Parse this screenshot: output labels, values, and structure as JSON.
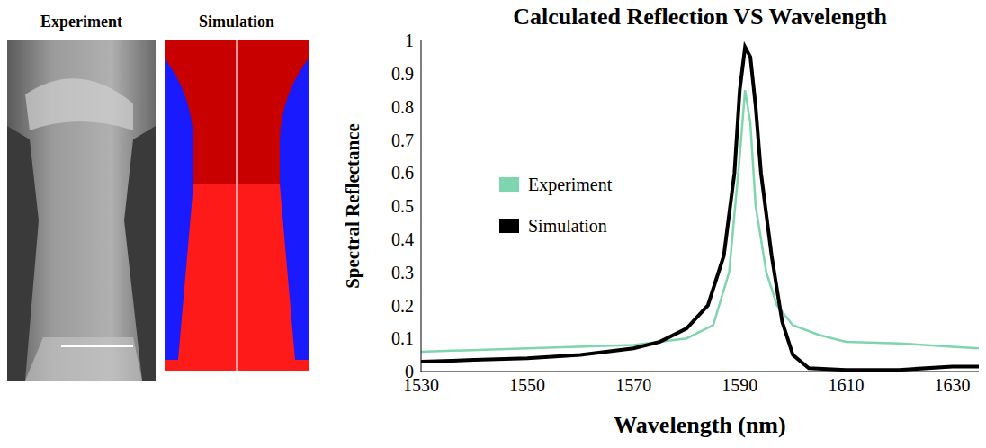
{
  "images": {
    "left_title": "Experiment",
    "right_title": "Simulation"
  },
  "chart_data": {
    "type": "line",
    "title": "Calculated Reflection VS Wavelength",
    "x_label": "Wavelength (nm)",
    "y_label": "Spectral Reflectance",
    "xlim": [
      1530,
      1635
    ],
    "xticks": [
      1530,
      1550,
      1570,
      1590,
      1610,
      1630
    ],
    "ylim": [
      0,
      1
    ],
    "yticks": [
      0,
      0.1,
      0.2,
      0.3,
      0.4,
      0.5,
      0.6,
      0.7,
      0.8,
      0.9,
      1
    ],
    "grid": false,
    "legend": "left",
    "series": [
      {
        "name": "Experiment",
        "color": "#7fd6ae",
        "x": [
          1530,
          1550,
          1570,
          1580,
          1585,
          1588,
          1590,
          1591,
          1592,
          1593,
          1595,
          1597,
          1600,
          1605,
          1610,
          1620,
          1630,
          1635
        ],
        "values": [
          0.06,
          0.07,
          0.08,
          0.1,
          0.14,
          0.3,
          0.65,
          0.85,
          0.75,
          0.5,
          0.3,
          0.2,
          0.14,
          0.11,
          0.09,
          0.085,
          0.075,
          0.07
        ]
      },
      {
        "name": "Simulation",
        "color": "#000000",
        "x": [
          1530,
          1540,
          1550,
          1560,
          1570,
          1575,
          1580,
          1584,
          1587,
          1589,
          1590,
          1591,
          1592,
          1593,
          1594,
          1596,
          1598,
          1600,
          1603,
          1610,
          1620,
          1630,
          1635
        ],
        "values": [
          0.03,
          0.035,
          0.04,
          0.05,
          0.07,
          0.09,
          0.13,
          0.2,
          0.35,
          0.6,
          0.85,
          0.98,
          0.95,
          0.8,
          0.6,
          0.35,
          0.15,
          0.05,
          0.01,
          0.005,
          0.005,
          0.015,
          0.015
        ]
      }
    ]
  }
}
